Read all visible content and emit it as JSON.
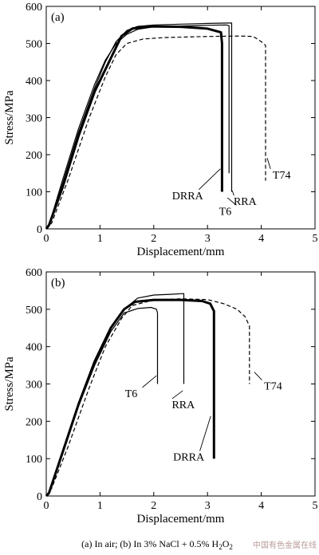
{
  "chart_data": [
    {
      "type": "line",
      "panel_label": "(a)",
      "xlabel": "Displacement/mm",
      "ylabel": "Stress/MPa",
      "xlim": [
        0,
        5
      ],
      "ylim": [
        0,
        600
      ],
      "xticks": [
        "0",
        "1",
        "2",
        "3",
        "4",
        "5"
      ],
      "yticks": [
        "0",
        "100",
        "200",
        "300",
        "400",
        "500",
        "600"
      ],
      "grid": false,
      "legend": "none",
      "series": [
        {
          "name": "T6",
          "style": "solid",
          "stroke_width": 1.2,
          "points": [
            [
              0,
              0
            ],
            [
              0.05,
              10
            ],
            [
              0.3,
              120
            ],
            [
              0.6,
              260
            ],
            [
              0.9,
              380
            ],
            [
              1.1,
              450
            ],
            [
              1.3,
              505
            ],
            [
              1.5,
              535
            ],
            [
              1.7,
              546
            ],
            [
              2.0,
              550
            ],
            [
              2.5,
              552
            ],
            [
              3.0,
              554
            ],
            [
              3.4,
              555
            ],
            [
              3.45,
              555
            ],
            [
              3.45,
              100
            ]
          ]
        },
        {
          "name": "RRA",
          "style": "solid",
          "stroke_width": 1.2,
          "points": [
            [
              0,
              0
            ],
            [
              0.05,
              10
            ],
            [
              0.3,
              130
            ],
            [
              0.6,
              270
            ],
            [
              0.9,
              390
            ],
            [
              1.1,
              455
            ],
            [
              1.3,
              500
            ],
            [
              1.5,
              525
            ],
            [
              1.7,
              538
            ],
            [
              2.0,
              545
            ],
            [
              2.5,
              547
            ],
            [
              3.0,
              549
            ],
            [
              3.35,
              550
            ],
            [
              3.4,
              548
            ],
            [
              3.4,
              150
            ]
          ]
        },
        {
          "name": "DRRA",
          "style": "solid",
          "stroke_width": 3,
          "points": [
            [
              0,
              0
            ],
            [
              0.05,
              10
            ],
            [
              0.3,
              110
            ],
            [
              0.6,
              250
            ],
            [
              0.9,
              370
            ],
            [
              1.2,
              460
            ],
            [
              1.4,
              520
            ],
            [
              1.6,
              540
            ],
            [
              1.9,
              546
            ],
            [
              2.5,
              545
            ],
            [
              3.0,
              540
            ],
            [
              3.25,
              530
            ],
            [
              3.27,
              500
            ],
            [
              3.27,
              100
            ]
          ]
        },
        {
          "name": "T74",
          "style": "dashed",
          "stroke_width": 1.2,
          "points": [
            [
              0,
              0
            ],
            [
              0.1,
              15
            ],
            [
              0.4,
              130
            ],
            [
              0.8,
              300
            ],
            [
              1.1,
              410
            ],
            [
              1.3,
              470
            ],
            [
              1.5,
              500
            ],
            [
              1.8,
              512
            ],
            [
              2.2,
              516
            ],
            [
              3.0,
              519
            ],
            [
              3.6,
              520
            ],
            [
              3.85,
              519
            ],
            [
              4.0,
              505
            ],
            [
              4.08,
              495
            ],
            [
              4.08,
              130
            ]
          ]
        }
      ],
      "annotations": [
        {
          "text": "DRRA",
          "x": 2.63,
          "y": 80,
          "target": [
            3.24,
            162
          ]
        },
        {
          "text": "T6",
          "x": 3.33,
          "y": 38,
          "target": [
            3.37,
            84
          ]
        },
        {
          "text": "RRA",
          "x": 3.7,
          "y": 64,
          "target": [
            3.46,
            103
          ]
        },
        {
          "text": "T74",
          "x": 4.38,
          "y": 136,
          "target": [
            4.11,
            191
          ]
        }
      ]
    },
    {
      "type": "line",
      "panel_label": "(b)",
      "xlabel": "Displacement/mm",
      "ylabel": "Stress/MPa",
      "xlim": [
        0,
        5
      ],
      "ylim": [
        0,
        600
      ],
      "xticks": [
        "0",
        "1",
        "2",
        "3",
        "4",
        "5"
      ],
      "yticks": [
        "0",
        "100",
        "200",
        "300",
        "400",
        "500",
        "600"
      ],
      "grid": false,
      "legend": "none",
      "series": [
        {
          "name": "T6",
          "style": "solid",
          "stroke_width": 1.2,
          "points": [
            [
              0,
              0
            ],
            [
              0.05,
              10
            ],
            [
              0.3,
              110
            ],
            [
              0.6,
              240
            ],
            [
              0.9,
              350
            ],
            [
              1.2,
              440
            ],
            [
              1.45,
              490
            ],
            [
              1.7,
              502
            ],
            [
              1.95,
              505
            ],
            [
              2.05,
              500
            ],
            [
              2.07,
              490
            ],
            [
              2.07,
              300
            ]
          ]
        },
        {
          "name": "RRA",
          "style": "solid",
          "stroke_width": 1.2,
          "points": [
            [
              0,
              0
            ],
            [
              0.05,
              10
            ],
            [
              0.3,
              120
            ],
            [
              0.6,
              250
            ],
            [
              0.9,
              360
            ],
            [
              1.2,
              450
            ],
            [
              1.45,
              500
            ],
            [
              1.7,
              530
            ],
            [
              2.0,
              538
            ],
            [
              2.3,
              540
            ],
            [
              2.55,
              542
            ],
            [
              2.56,
              542
            ],
            [
              2.56,
              300
            ]
          ]
        },
        {
          "name": "DRRA",
          "style": "solid",
          "stroke_width": 3,
          "points": [
            [
              0,
              0
            ],
            [
              0.05,
              8
            ],
            [
              0.3,
              115
            ],
            [
              0.6,
              245
            ],
            [
              0.9,
              360
            ],
            [
              1.2,
              450
            ],
            [
              1.45,
              500
            ],
            [
              1.65,
              520
            ],
            [
              2.0,
              525
            ],
            [
              2.5,
              525
            ],
            [
              2.9,
              522
            ],
            [
              3.05,
              515
            ],
            [
              3.12,
              495
            ],
            [
              3.12,
              100
            ]
          ]
        },
        {
          "name": "T74",
          "style": "dashed",
          "stroke_width": 1.2,
          "points": [
            [
              0,
              0
            ],
            [
              0.1,
              20
            ],
            [
              0.4,
              130
            ],
            [
              0.8,
              290
            ],
            [
              1.1,
              400
            ],
            [
              1.4,
              475
            ],
            [
              1.6,
              510
            ],
            [
              2.0,
              525
            ],
            [
              2.5,
              528
            ],
            [
              3.0,
              526
            ],
            [
              3.3,
              515
            ],
            [
              3.55,
              500
            ],
            [
              3.7,
              480
            ],
            [
              3.78,
              455
            ],
            [
              3.78,
              300
            ]
          ]
        }
      ],
      "annotations": [
        {
          "text": "T6",
          "x": 1.58,
          "y": 265,
          "target": [
            2.05,
            322
          ]
        },
        {
          "text": "RRA",
          "x": 2.55,
          "y": 235,
          "target": [
            2.54,
            282
          ]
        },
        {
          "text": "T74",
          "x": 4.22,
          "y": 285,
          "target": [
            3.87,
            332
          ]
        },
        {
          "text": "DRRA",
          "x": 2.65,
          "y": 95,
          "target": [
            3.06,
            214
          ]
        }
      ]
    }
  ],
  "caption": {
    "part_a": "(a) In air; (b) In 3% NaCl + 0.5% H",
    "sub1": "2",
    "part_b": "O",
    "sub2": "2"
  },
  "watermark": "中国有色金属在线"
}
